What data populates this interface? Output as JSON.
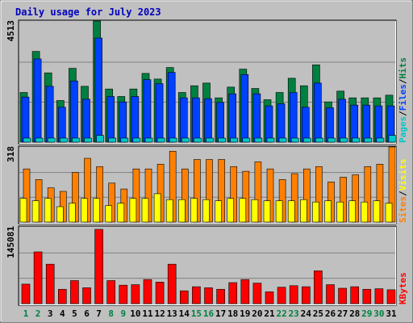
{
  "chart_data": [
    {
      "type": "bar",
      "title": "Daily usage for July 2023",
      "ylabel_max": "4513",
      "ymax": 4513,
      "legend": [
        {
          "label": "Pages",
          "color": "#00c8c8"
        },
        {
          "label": "Files",
          "color": "#0040ff"
        },
        {
          "label": "Hits",
          "color": "#008040"
        }
      ],
      "legend_sep": "/",
      "categories": [
        "1",
        "2",
        "3",
        "4",
        "5",
        "6",
        "7",
        "8",
        "9",
        "10",
        "11",
        "12",
        "13",
        "14",
        "15",
        "16",
        "17",
        "18",
        "19",
        "20",
        "21",
        "22",
        "23",
        "24",
        "25",
        "26",
        "27",
        "28",
        "29",
        "30",
        "31"
      ],
      "weekend_days": [
        1,
        2,
        8,
        9,
        15,
        16,
        22,
        23,
        29,
        30
      ],
      "series": [
        {
          "name": "Hits",
          "values": [
            1850,
            3380,
            2580,
            1550,
            2750,
            2080,
            4513,
            1980,
            1700,
            1980,
            2560,
            2350,
            2780,
            1850,
            2100,
            2200,
            1650,
            2050,
            2720,
            2000,
            1580,
            1850,
            2380,
            2100,
            2880,
            1500,
            1900,
            1650,
            1650,
            1650,
            1750
          ]
        },
        {
          "name": "Files",
          "values": [
            1680,
            3100,
            2080,
            1300,
            2280,
            1600,
            3880,
            1700,
            1500,
            1700,
            2330,
            2180,
            2600,
            1650,
            1650,
            1620,
            1480,
            1800,
            2520,
            1800,
            1350,
            1430,
            1850,
            1300,
            2200,
            1280,
            1600,
            1380,
            1380,
            1350,
            1350
          ]
        },
        {
          "name": "Pages",
          "values": [
            150,
            150,
            150,
            150,
            150,
            150,
            250,
            150,
            150,
            150,
            150,
            150,
            150,
            150,
            150,
            150,
            150,
            150,
            150,
            150,
            150,
            150,
            150,
            150,
            150,
            150,
            150,
            150,
            150,
            150,
            250
          ]
        }
      ]
    },
    {
      "type": "bar",
      "ylabel_max": "318",
      "ymax": 318,
      "legend": [
        {
          "label": "Sites",
          "color": "#ff8000"
        },
        {
          "label": "Visits",
          "color": "#ffff00"
        }
      ],
      "legend_sep": "/",
      "series": [
        {
          "name": "Visits",
          "values": [
            100,
            90,
            100,
            65,
            80,
            100,
            100,
            70,
            80,
            100,
            100,
            120,
            95,
            95,
            100,
            95,
            90,
            100,
            100,
            95,
            90,
            90,
            90,
            95,
            85,
            90,
            85,
            90,
            85,
            90,
            80
          ]
        },
        {
          "name": "Sites",
          "values": [
            225,
            180,
            145,
            130,
            210,
            270,
            235,
            165,
            140,
            225,
            225,
            245,
            300,
            225,
            265,
            265,
            265,
            235,
            215,
            255,
            225,
            180,
            205,
            225,
            235,
            170,
            190,
            200,
            235,
            245,
            318
          ]
        }
      ]
    },
    {
      "type": "bar",
      "ylabel_max": "145081",
      "ymax": 145081,
      "legend": [
        {
          "label": "KBytes",
          "color": "#ff0000"
        }
      ],
      "legend_sep": "",
      "series": [
        {
          "name": "KBytes",
          "values": [
            38000,
            101000,
            77000,
            28000,
            45000,
            31000,
            145081,
            45000,
            36000,
            37000,
            47000,
            42000,
            77000,
            25000,
            33000,
            31000,
            28000,
            41000,
            47000,
            40000,
            23000,
            32000,
            35000,
            33000,
            64000,
            37000,
            30000,
            33000,
            28000,
            29000,
            27000
          ]
        }
      ]
    }
  ]
}
